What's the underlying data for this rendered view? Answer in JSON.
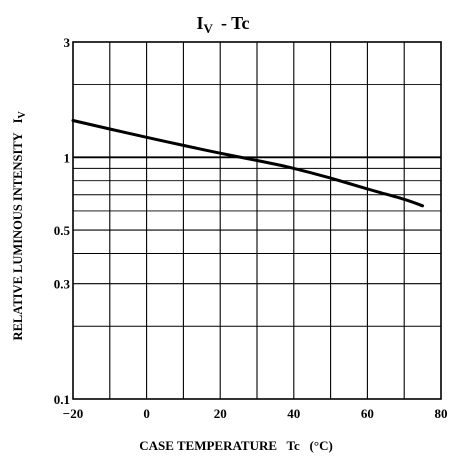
{
  "chart_data": {
    "type": "line",
    "title_main": "I",
    "title_sub": "V",
    "title_rest": "- Tc",
    "xlabel": "CASE TEMPERATURE   Tc   (°C)",
    "ylabel_main": "RELATIVE LUMINOUS INTENSITY   I",
    "ylabel_sub": "V",
    "x_scale": "linear",
    "y_scale": "log",
    "xlim": [
      -20,
      80
    ],
    "ylim": [
      0.1,
      3
    ],
    "x_ticks": [
      -20,
      0,
      20,
      40,
      60,
      80
    ],
    "x_tick_labels": [
      "−20",
      "0",
      "20",
      "40",
      "60",
      "80"
    ],
    "x_minor_gridlines": [
      -10,
      10,
      30,
      50,
      70
    ],
    "y_ticks": [
      0.1,
      0.3,
      0.5,
      1,
      3
    ],
    "y_tick_labels": [
      "0.1",
      "0.3",
      "0.5",
      "1",
      "3"
    ],
    "y_minor_gridlines": [
      0.2,
      0.4,
      0.6,
      0.7,
      0.8,
      0.9,
      2
    ],
    "grid": true,
    "series": [
      {
        "x": [
          -20,
          -10,
          0,
          10,
          20,
          30,
          40,
          50,
          60,
          70,
          75
        ],
        "values": [
          1.42,
          1.31,
          1.21,
          1.12,
          1.04,
          0.97,
          0.9,
          0.82,
          0.74,
          0.67,
          0.63
        ]
      }
    ],
    "colors": {
      "line": "#000000",
      "grid": "#000000",
      "background": "#ffffff"
    }
  }
}
